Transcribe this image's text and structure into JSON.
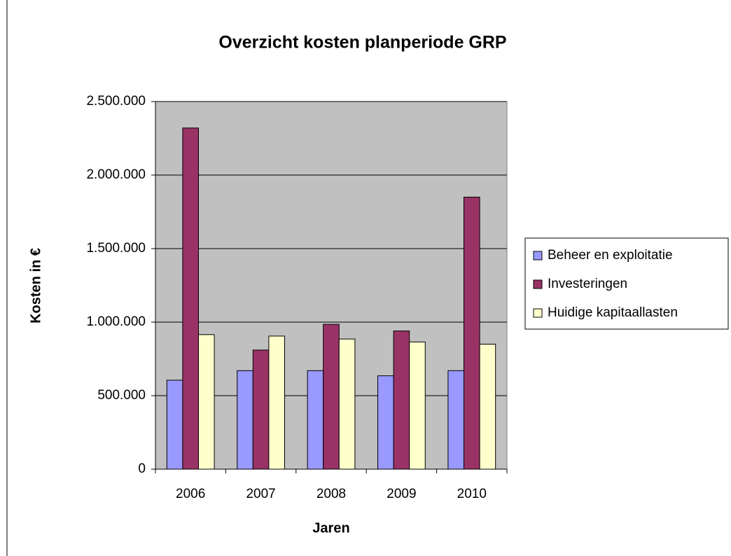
{
  "chart_data": {
    "type": "bar",
    "title": "Overzicht kosten planperiode GRP",
    "x_label": "Jaren",
    "y_label": "Kosten in €",
    "categories": [
      "2006",
      "2007",
      "2008",
      "2009",
      "2010"
    ],
    "series": [
      {
        "name": "Beheer en exploitatie",
        "color": "#9999ff",
        "values": [
          605000,
          670000,
          670000,
          635000,
          670000
        ]
      },
      {
        "name": "Investeringen",
        "color": "#993366",
        "values": [
          2320000,
          810000,
          985000,
          940000,
          1850000
        ]
      },
      {
        "name": "Huidige kapitaallasten",
        "color": "#ffffcc",
        "values": [
          915000,
          905000,
          885000,
          865000,
          850000
        ]
      }
    ],
    "ylim": [
      0,
      2500000
    ],
    "yticks": [
      0,
      {
        "value": 500000,
        "label": "500.000"
      },
      {
        "value": 1000000,
        "label": "1.000.000"
      },
      {
        "value": 1500000,
        "label": "1.500.000"
      },
      {
        "value": 2000000,
        "label": "2.000.000"
      },
      {
        "value": 2500000,
        "label": "2.500.000"
      }
    ],
    "grid": true,
    "plot_background": "#c0c0c0",
    "legend": "right"
  }
}
